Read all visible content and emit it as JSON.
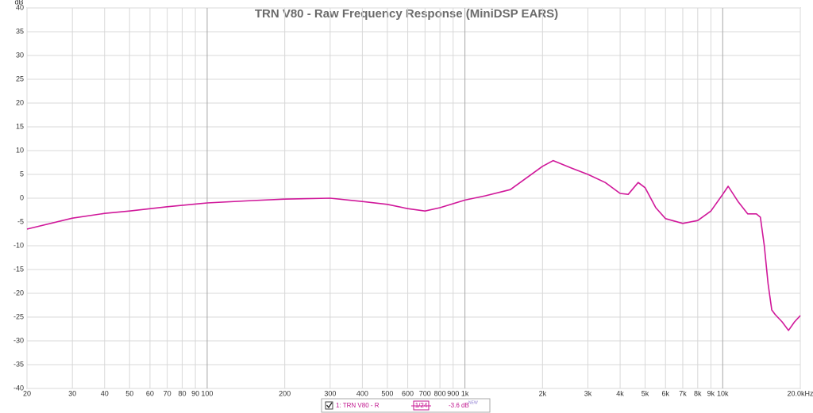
{
  "chart_data": {
    "type": "line",
    "title": "TRN V80 - Raw Frequency Response (MiniDSP EARS)",
    "y_unit": "dB",
    "xscale": "log",
    "grid": true,
    "xlim": [
      20,
      20000
    ],
    "ylim": [
      -40,
      40
    ],
    "xticks": [
      20,
      30,
      40,
      50,
      60,
      70,
      80,
      90,
      100,
      200,
      300,
      400,
      500,
      600,
      700,
      800,
      900,
      {
        "value": 1000,
        "label": "1k"
      },
      {
        "value": 2000,
        "label": "2k"
      },
      {
        "value": 3000,
        "label": "3k"
      },
      {
        "value": 4000,
        "label": "4k"
      },
      {
        "value": 5000,
        "label": "5k"
      },
      {
        "value": 6000,
        "label": "6k"
      },
      {
        "value": 7000,
        "label": "7k"
      },
      {
        "value": 8000,
        "label": "8k"
      },
      {
        "value": 9000,
        "label": "9k"
      },
      {
        "value": 10000,
        "label": "10k"
      },
      {
        "value": 20000,
        "label": "20.0kHz"
      }
    ],
    "yticks": [
      40,
      35,
      30,
      25,
      20,
      15,
      10,
      5,
      0,
      -5,
      -10,
      -15,
      -20,
      -25,
      -30,
      -35,
      -40
    ],
    "series": [
      {
        "name": "1: TRN V80 - R",
        "color": "#d0189a",
        "x": [
          20,
          30,
          40,
          50,
          70,
          100,
          150,
          200,
          300,
          400,
          500,
          600,
          700,
          800,
          1000,
          1200,
          1500,
          2000,
          2200,
          2600,
          3000,
          3500,
          4000,
          4300,
          4700,
          5000,
          5500,
          6000,
          7000,
          8000,
          9000,
          10000,
          10500,
          11500,
          12500,
          13500,
          14000,
          14500,
          15000,
          15500,
          16000,
          17000,
          18000,
          19000,
          20000
        ],
        "values": [
          -6.5,
          -4.2,
          -3.2,
          -2.7,
          -1.8,
          -1.0,
          -0.5,
          -0.2,
          0,
          -0.7,
          -1.3,
          -2.2,
          -2.7,
          -2.0,
          -0.4,
          0.5,
          1.8,
          6.7,
          7.9,
          6.3,
          5.0,
          3.3,
          1.0,
          0.8,
          3.3,
          2.2,
          -2.0,
          -4.3,
          -5.3,
          -4.7,
          -2.7,
          0.8,
          2.5,
          -0.8,
          -3.3,
          -3.3,
          -4.0,
          -10,
          -18,
          -23.5,
          -24.5,
          -26,
          -27.8,
          -26,
          -24.7
        ]
      }
    ],
    "legend": {
      "smoothing": "1/24",
      "offset": "-3.6 dB",
      "tag": "NEW"
    }
  }
}
